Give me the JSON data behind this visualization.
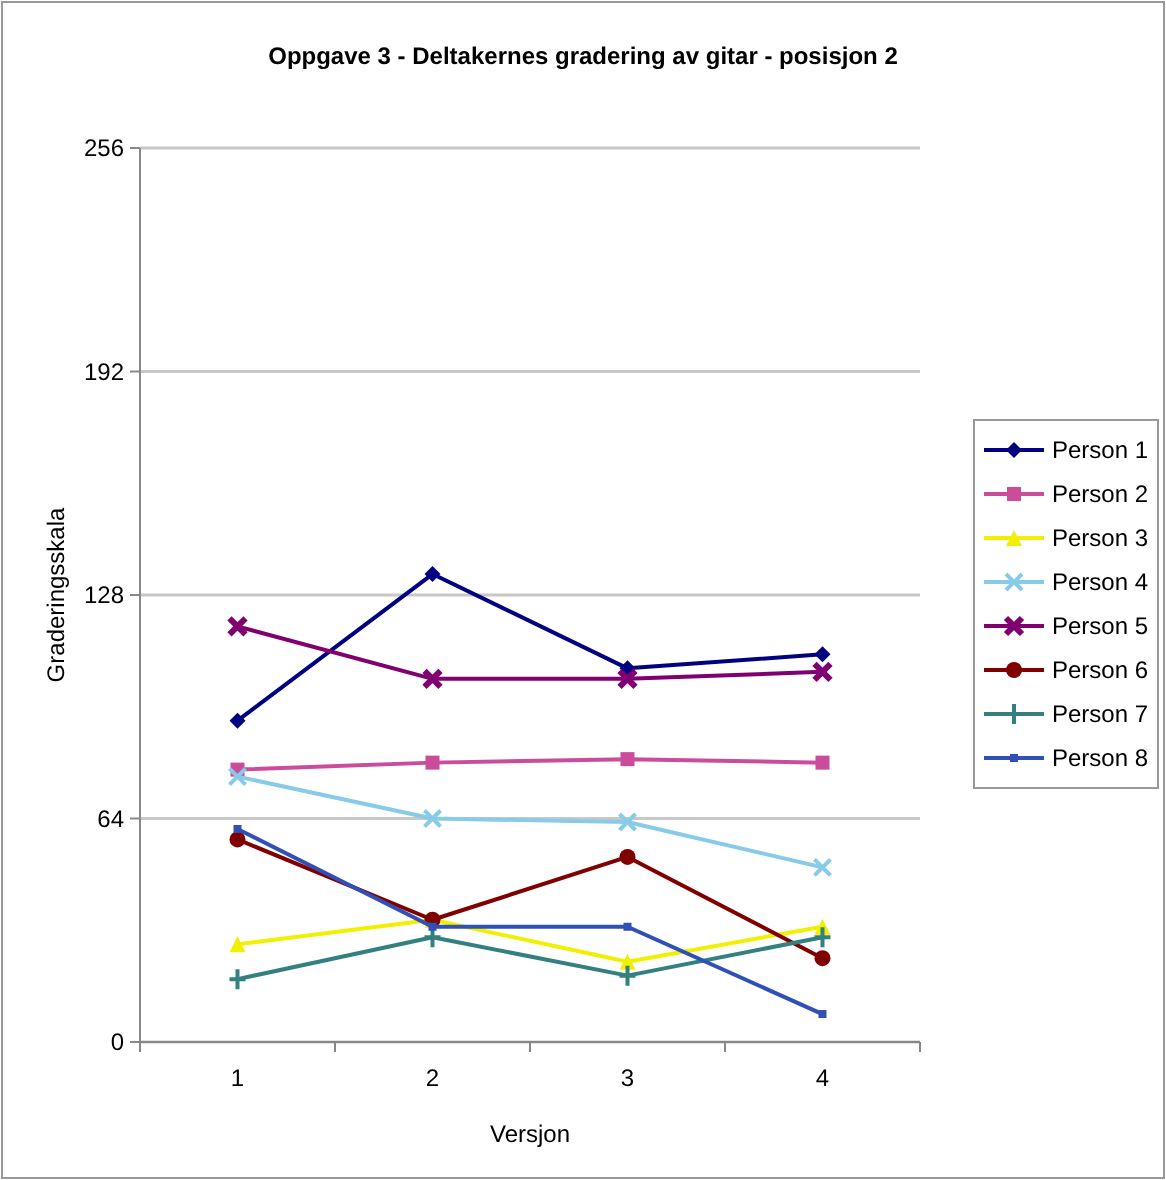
{
  "chart_data": {
    "type": "line",
    "title": "Oppgave 3 - Deltakernes gradering av gitar - posisjon 2",
    "xlabel": "Versjon",
    "ylabel": "Graderingsskala",
    "categories": [
      "1",
      "2",
      "3",
      "4"
    ],
    "ylim": [
      0,
      256
    ],
    "yticks": [
      0,
      64,
      128,
      192,
      256
    ],
    "grid": "y",
    "legend": "right",
    "series": [
      {
        "name": "Person 1",
        "color": "#000080",
        "marker": "diamond",
        "values": [
          92,
          134,
          107,
          111
        ]
      },
      {
        "name": "Person 2",
        "color": "#cc4c9c",
        "marker": "square",
        "values": [
          78,
          80,
          81,
          80
        ]
      },
      {
        "name": "Person 3",
        "color": "#f0f000",
        "marker": "triangle",
        "values": [
          28,
          35,
          23,
          33
        ]
      },
      {
        "name": "Person 4",
        "color": "#87cbe8",
        "marker": "cross",
        "values": [
          76,
          64,
          63,
          50
        ]
      },
      {
        "name": "Person 5",
        "color": "#800070",
        "marker": "cross",
        "values": [
          119,
          104,
          104,
          106
        ]
      },
      {
        "name": "Person 6",
        "color": "#800000",
        "marker": "circle",
        "values": [
          58,
          35,
          53,
          24
        ]
      },
      {
        "name": "Person 7",
        "color": "#338080",
        "marker": "plus",
        "values": [
          18,
          30,
          19,
          30
        ]
      },
      {
        "name": "Person 8",
        "color": "#3050b8",
        "marker": "square",
        "values": [
          61,
          33,
          33,
          8
        ]
      }
    ]
  }
}
